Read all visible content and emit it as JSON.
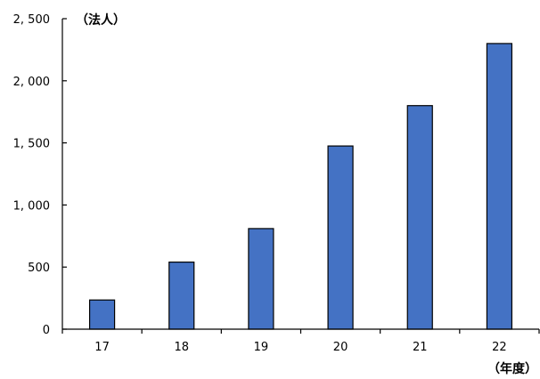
{
  "chart_data": {
    "type": "bar",
    "title": "",
    "xlabel": "（年度）",
    "ylabel": "（法人）",
    "categories": [
      "17",
      "18",
      "19",
      "20",
      "21",
      "22"
    ],
    "series": [
      {
        "values": [
          235,
          540,
          810,
          1475,
          1800,
          2300
        ]
      }
    ],
    "ylim": [
      0,
      2500
    ],
    "yticks": [
      0,
      500,
      1000,
      1500,
      2000,
      2500
    ],
    "ytick_labels": [
      "0",
      "500",
      "1, 000",
      "1, 500",
      "2, 000",
      "2, 500"
    ],
    "grid": false,
    "legend": "none",
    "colors": {
      "bar": "#4472C4",
      "bar_edge": "#000000",
      "axis": "#000000"
    }
  }
}
